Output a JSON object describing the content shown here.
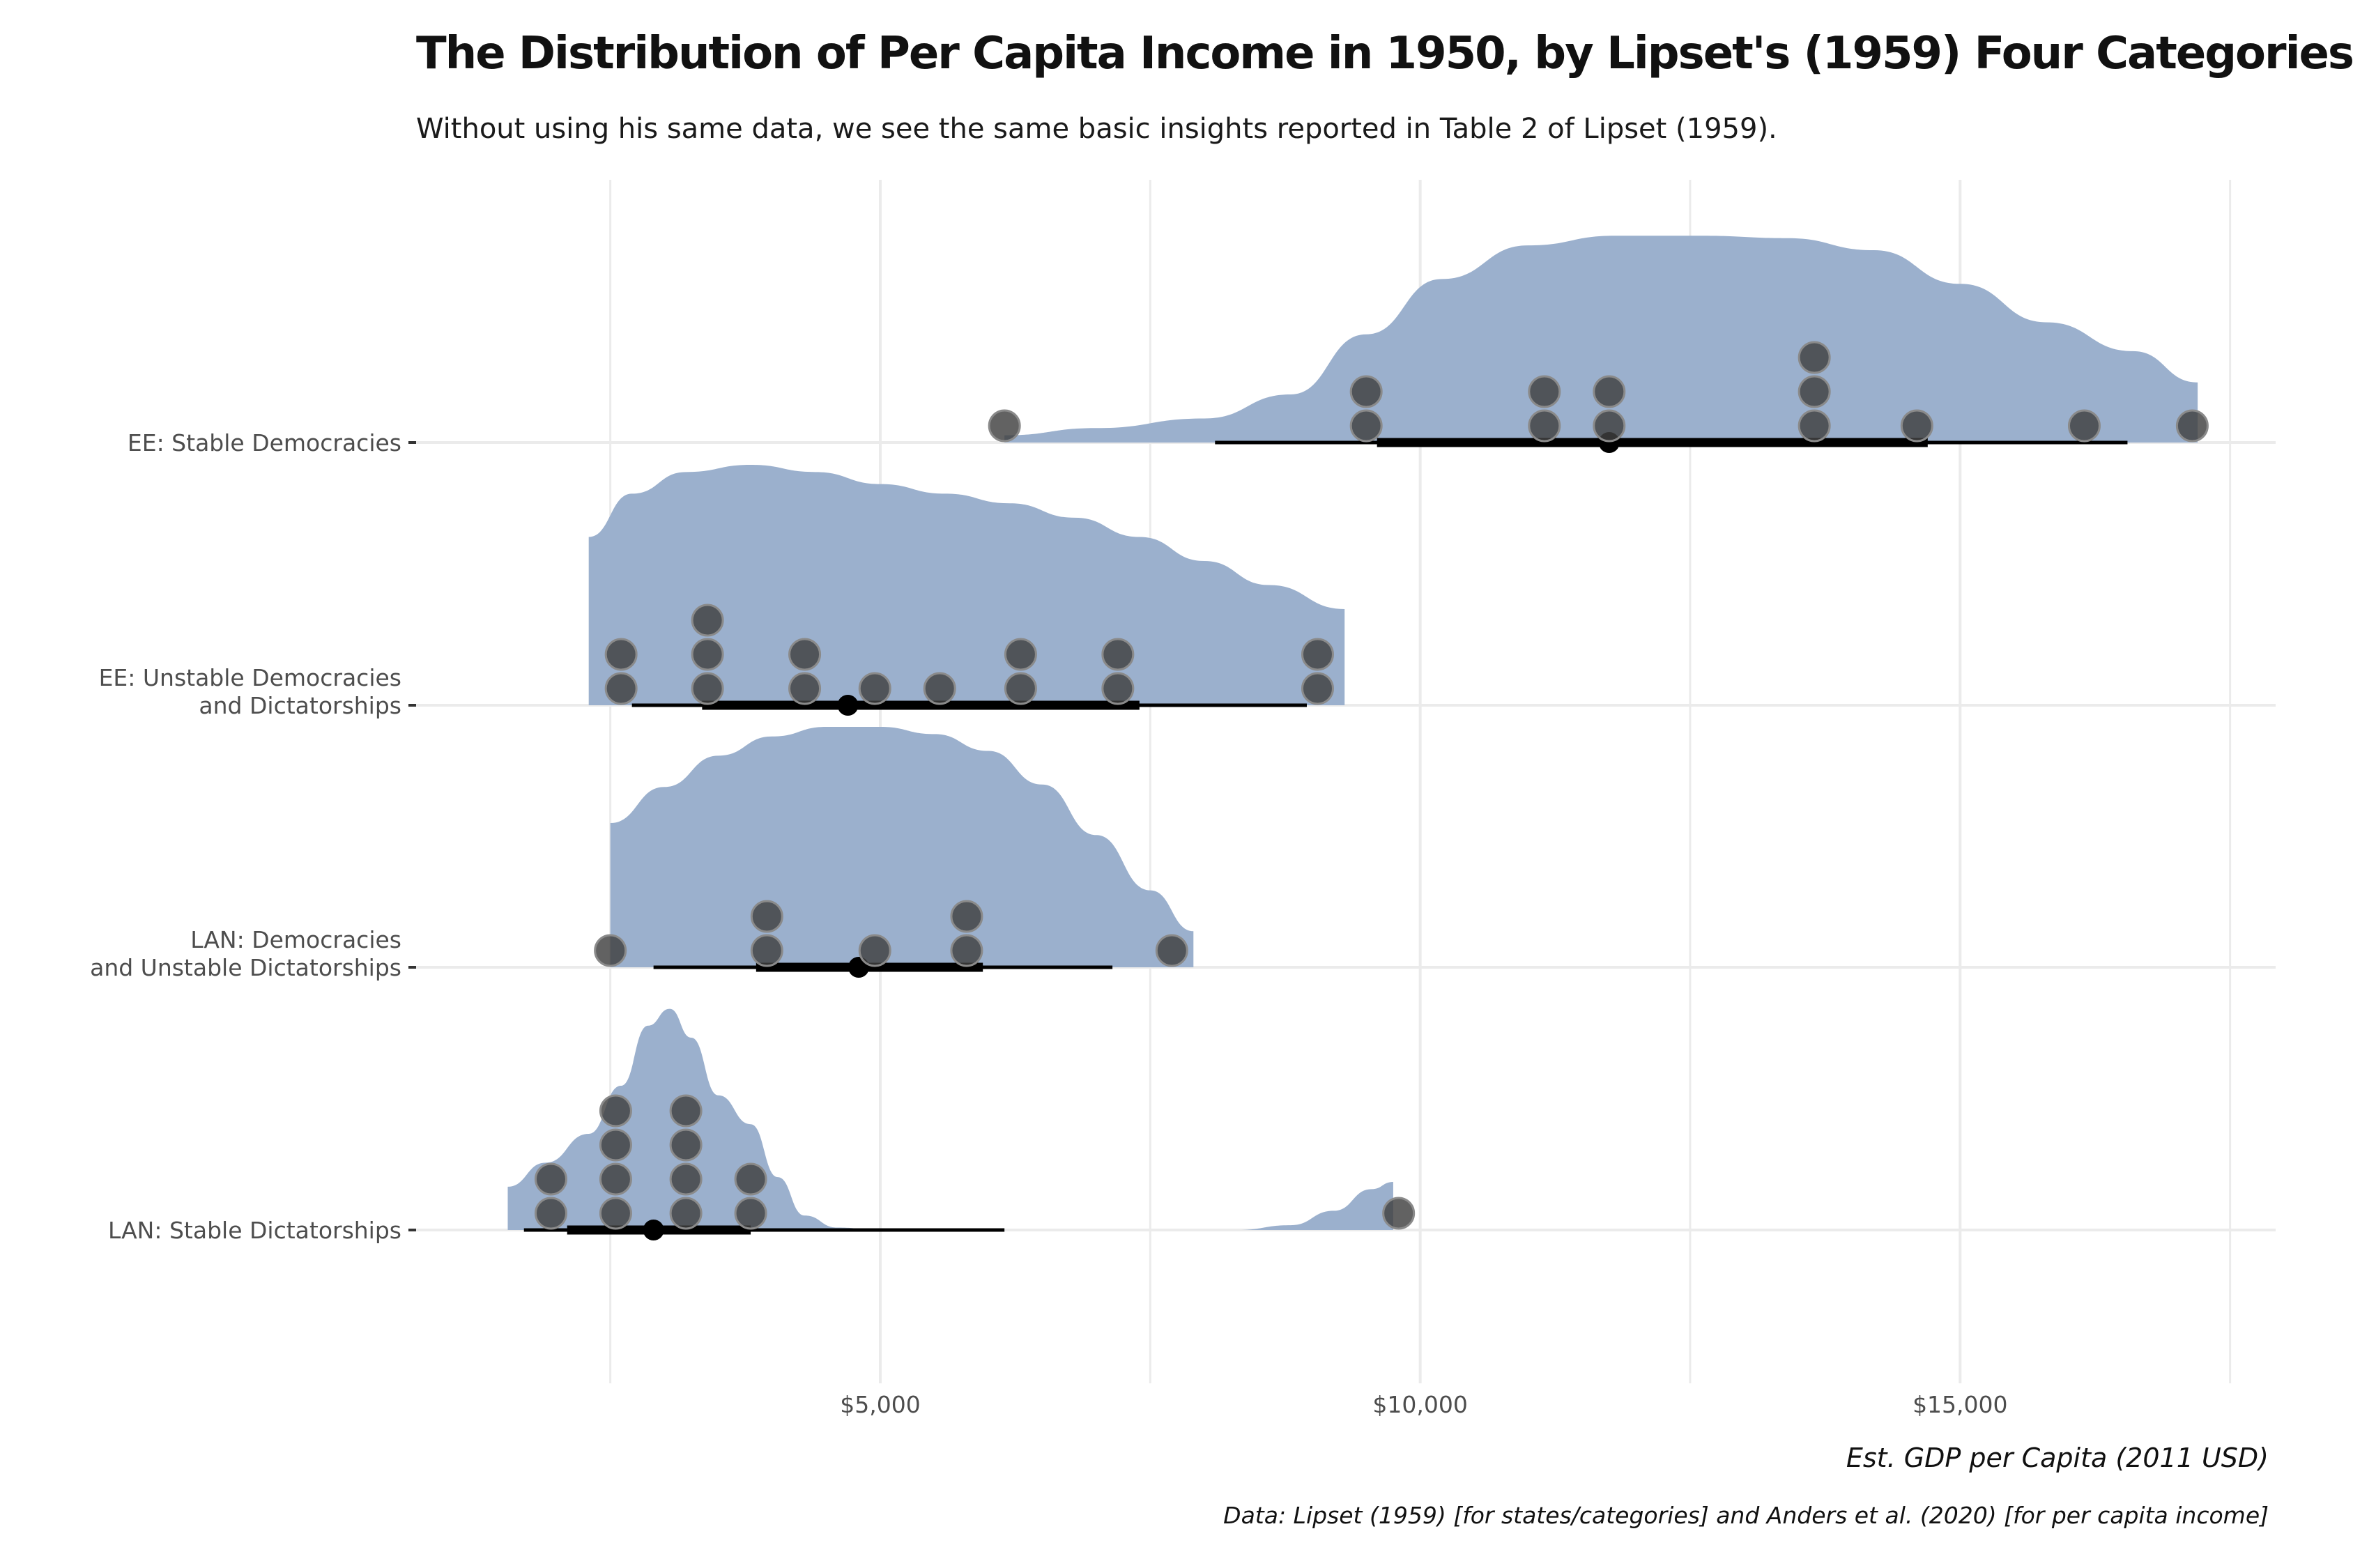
{
  "chart_data": {
    "type": "raincloud",
    "title": "The Distribution of Per Capita Income in 1950, by Lipset's (1959) Four Categories",
    "subtitle": "Without using his same data, we see the same basic insights reported in Table 2 of Lipset (1959).",
    "xlabel": "Est. GDP per Capita (2011 USD)",
    "caption": "Data: Lipset (1959) [for states/categories] and Anders et al. (2020) [for per capita income]",
    "xlim": [
      1000,
      18000
    ],
    "xticks": [
      5000,
      10000,
      15000
    ],
    "xtick_labels": [
      "$5,000",
      "$10,000",
      "$15,000"
    ],
    "grid": true,
    "colors": {
      "density": "#9bb0cd",
      "point": "#3f3f3f",
      "summary": "#000000",
      "grid": "#ebebeb"
    },
    "categories": [
      {
        "name": "EE: Stable Democracies",
        "label_lines": [
          "EE: Stable Democracies"
        ],
        "points": [
          6150,
          9500,
          9500,
          11150,
          11150,
          11750,
          11750,
          13650,
          13650,
          13650,
          14600,
          16150,
          17150
        ],
        "median": 11750,
        "q1": 9600,
        "q3": 14700,
        "p10": 8100,
        "p90": 16550,
        "density": {
          "x": [
            6150,
            7000,
            8000,
            8800,
            9500,
            10200,
            11000,
            11800,
            12600,
            13400,
            14200,
            15000,
            15800,
            16600,
            17200
          ],
          "y": [
            0.03,
            0.06,
            0.1,
            0.2,
            0.45,
            0.68,
            0.82,
            0.86,
            0.86,
            0.85,
            0.8,
            0.66,
            0.5,
            0.38,
            0.25
          ]
        }
      },
      {
        "name": "EE: Unstable Democracies and Dictatorships",
        "label_lines": [
          "EE: Unstable Democracies",
          "and Dictatorships"
        ],
        "points": [
          2600,
          2600,
          3400,
          3400,
          3400,
          4300,
          4300,
          4950,
          5550,
          6300,
          6300,
          7200,
          7200,
          9050,
          9050
        ],
        "median": 4700,
        "q1": 3350,
        "q3": 7400,
        "p10": 2700,
        "p90": 8950,
        "density": {
          "x": [
            2300,
            2700,
            3200,
            3800,
            4400,
            5000,
            5600,
            6200,
            6800,
            7400,
            8000,
            8600,
            9300
          ],
          "y": [
            0.7,
            0.88,
            0.97,
            1.0,
            0.97,
            0.92,
            0.88,
            0.84,
            0.78,
            0.7,
            0.6,
            0.5,
            0.4
          ]
        }
      },
      {
        "name": "LAN: Democracies and Unstable Dictatorships",
        "label_lines": [
          "LAN: Democracies",
          "and Unstable Dictatorships"
        ],
        "points": [
          2500,
          3950,
          3950,
          4950,
          5800,
          5800,
          7700
        ],
        "median": 4800,
        "q1": 3850,
        "q3": 5950,
        "p10": 2900,
        "p90": 7150,
        "density": {
          "x": [
            2500,
            3000,
            3500,
            4000,
            4500,
            5000,
            5500,
            6000,
            6500,
            7000,
            7500,
            7900
          ],
          "y": [
            0.6,
            0.75,
            0.88,
            0.96,
            1.0,
            1.0,
            0.97,
            0.9,
            0.76,
            0.55,
            0.32,
            0.15
          ]
        }
      },
      {
        "name": "LAN: Stable Dictatorships",
        "label_lines": [
          "LAN: Stable Dictatorships"
        ],
        "points": [
          1950,
          1950,
          2550,
          2550,
          2550,
          2550,
          3200,
          3200,
          3200,
          3200,
          3800,
          3800,
          9800
        ],
        "median": 2900,
        "q1": 2100,
        "q3": 3800,
        "p10": 1700,
        "p90": 6150,
        "density": {
          "x": [
            1550,
            1900,
            2300,
            2600,
            2850,
            3050,
            3250,
            3500,
            3800,
            4050,
            4300,
            4600,
            5000,
            5500,
            6500,
            7500,
            8300,
            8800,
            9200,
            9550,
            9750
          ],
          "y": [
            0.18,
            0.28,
            0.4,
            0.6,
            0.85,
            0.92,
            0.8,
            0.56,
            0.44,
            0.22,
            0.06,
            0.01,
            0.0,
            0.0,
            0.0,
            0.0,
            0.0,
            0.02,
            0.08,
            0.17,
            0.2
          ]
        }
      }
    ]
  }
}
